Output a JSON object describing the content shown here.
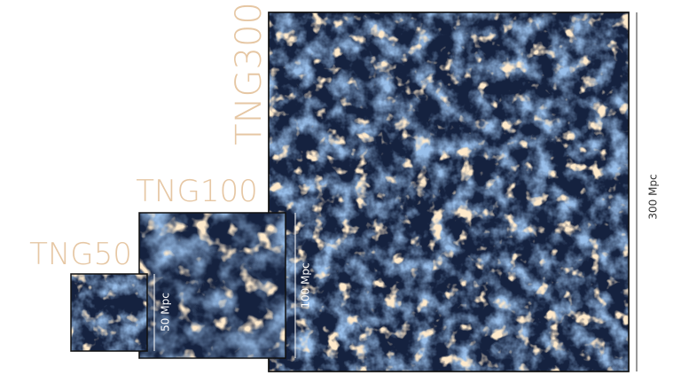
{
  "panels": [
    {
      "title": "TNG300",
      "scale_label": "300 Mpc"
    },
    {
      "title": "TNG100",
      "scale_label": "100 Mpc"
    },
    {
      "title": "TNG50",
      "scale_label": "50 Mpc"
    }
  ]
}
